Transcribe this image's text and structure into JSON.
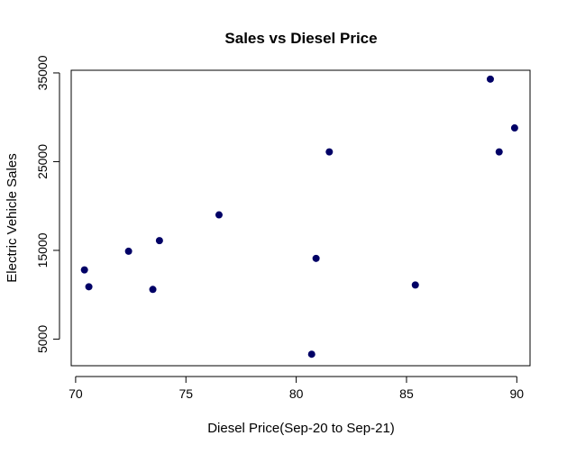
{
  "chart_data": {
    "type": "scatter",
    "title": "Sales vs Diesel Price",
    "xlabel": "Diesel Price(Sep-20 to Sep-21)",
    "ylabel": "Electric Vehicle Sales",
    "xlim": [
      69.8,
      90.6
    ],
    "ylim": [
      2000,
      35300
    ],
    "xticks": [
      70,
      75,
      80,
      85,
      90
    ],
    "yticks": [
      5000,
      15000,
      25000,
      35000
    ],
    "xtick_labels": [
      "70",
      "75",
      "80",
      "85",
      "90"
    ],
    "ytick_labels": [
      "5000",
      "15000",
      "25000",
      "35000"
    ],
    "grid": false,
    "point_color": "#000066",
    "points": [
      {
        "x": 70.4,
        "y": 12800
      },
      {
        "x": 70.6,
        "y": 10900
      },
      {
        "x": 72.4,
        "y": 14900
      },
      {
        "x": 73.5,
        "y": 10600
      },
      {
        "x": 73.8,
        "y": 16100
      },
      {
        "x": 76.5,
        "y": 19000
      },
      {
        "x": 80.7,
        "y": 3300
      },
      {
        "x": 80.9,
        "y": 14100
      },
      {
        "x": 81.5,
        "y": 26100
      },
      {
        "x": 85.4,
        "y": 11100
      },
      {
        "x": 88.8,
        "y": 34300
      },
      {
        "x": 89.2,
        "y": 26100
      },
      {
        "x": 89.9,
        "y": 28800
      }
    ]
  }
}
